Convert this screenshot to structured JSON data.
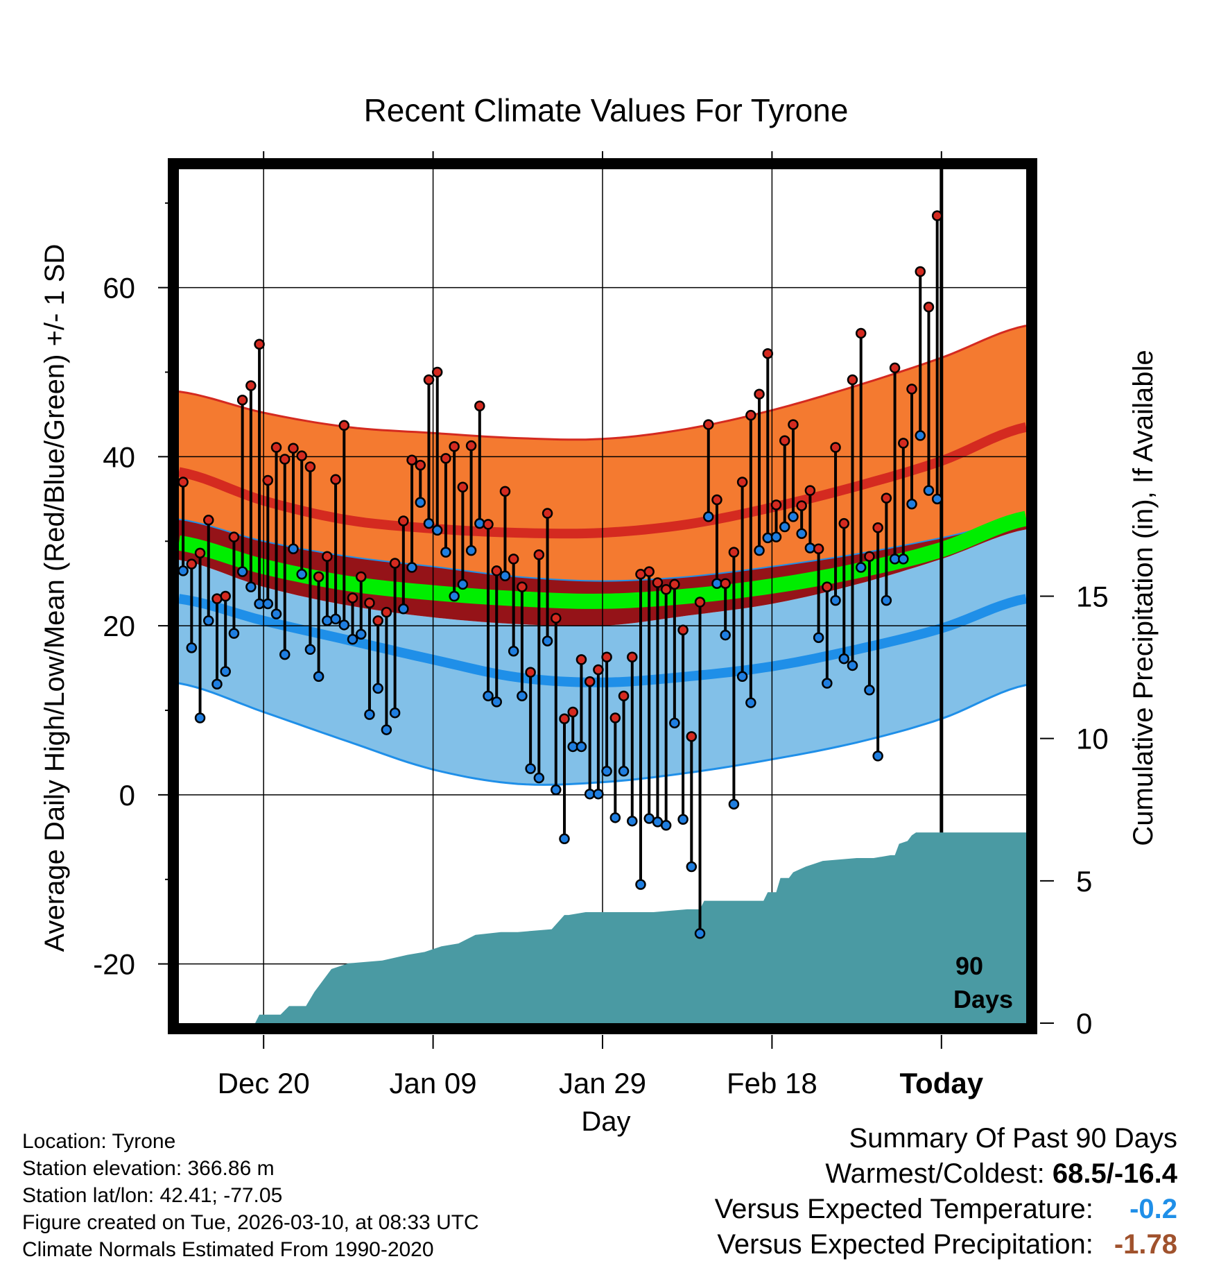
{
  "chart_data": {
    "type": "line",
    "title": "Recent Climate Values For Tyrone",
    "xlabel": "Day",
    "ylabel": "Average Daily High/Low/Mean (Red/Blue/Green) +/- 1 SD",
    "y2label": "Cumulative Precipitation (in), If Available",
    "days": 100,
    "today_index": 90,
    "ylim": [
      -27,
      74
    ],
    "y_ticks": [
      -20,
      0,
      20,
      40,
      60
    ],
    "y2lim": [
      0,
      30
    ],
    "y2_ticks": [
      0,
      5,
      10,
      15
    ],
    "x_ticks": [
      {
        "index": 10,
        "label": "Dec 20"
      },
      {
        "index": 30,
        "label": "Jan 09"
      },
      {
        "index": 50,
        "label": "Jan 29"
      },
      {
        "index": 70,
        "label": "Feb 18"
      },
      {
        "index": 90,
        "label": "Today"
      }
    ],
    "today_label_line1": "90",
    "today_label_line2": "Days",
    "normals": {
      "day_index": [
        0,
        10,
        20,
        30,
        40,
        50,
        60,
        70,
        80,
        90,
        100
      ],
      "high_plus_sd": [
        47.7,
        45.2,
        43.5,
        42.8,
        42.2,
        42.1,
        43.3,
        45.5,
        48.4,
        51.7,
        55.5
      ],
      "high_mean": [
        38.2,
        34.8,
        32.5,
        31.5,
        31.0,
        31.0,
        32.0,
        34.0,
        36.5,
        39.5,
        43.5
      ],
      "high_minus_sd": [
        32.6,
        30.0,
        28.2,
        27.0,
        25.8,
        25.3,
        25.8,
        27.0,
        28.5,
        30.4,
        32.6
      ],
      "mean_mean": [
        29.8,
        27.0,
        25.0,
        23.9,
        23.2,
        22.9,
        23.5,
        24.7,
        26.5,
        29.0,
        32.7
      ],
      "low_plus_sd": [
        27.8,
        24.6,
        22.4,
        21.0,
        20.2,
        20.0,
        21.2,
        22.6,
        24.9,
        27.9,
        31.4
      ],
      "low_mean": [
        23.2,
        20.6,
        18.3,
        16.0,
        13.9,
        13.3,
        14.0,
        15.2,
        17.2,
        19.7,
        23.2
      ],
      "low_minus_sd": [
        13.2,
        9.8,
        6.3,
        3.0,
        1.3,
        1.5,
        2.6,
        4.2,
        6.2,
        9.0,
        13.0
      ]
    },
    "series": [
      {
        "name": "Daily High",
        "color": "#d42a20",
        "values": [
          37.0,
          27.3,
          28.6,
          32.5,
          23.2,
          23.5,
          30.5,
          46.7,
          48.4,
          53.3,
          37.2,
          41.1,
          39.7,
          41.0,
          40.1,
          38.8,
          25.8,
          28.2,
          37.3,
          43.7,
          23.3,
          25.8,
          22.7,
          20.6,
          21.6,
          27.4,
          32.4,
          39.6,
          39.0,
          49.1,
          50.0,
          39.8,
          41.2,
          36.4,
          41.3,
          46.0,
          32.0,
          26.5,
          35.9,
          27.9,
          24.6,
          14.5,
          28.4,
          33.3,
          20.9,
          9.0,
          9.8,
          16.0,
          13.4,
          14.8,
          16.3,
          9.1,
          11.7,
          16.3,
          26.1,
          26.4,
          25.1,
          24.3,
          24.9,
          19.5,
          6.9,
          22.8,
          43.8,
          34.9,
          25.0,
          28.7,
          37.0,
          44.9,
          47.4,
          52.2,
          34.3,
          41.9,
          43.8,
          34.2,
          36.0,
          29.1,
          24.6,
          41.1,
          32.1,
          49.1,
          54.6,
          28.2,
          31.6,
          35.1,
          50.5,
          41.6,
          48.0,
          61.9,
          57.7,
          68.5
        ]
      },
      {
        "name": "Daily Low",
        "color": "#1f7ee0",
        "values": [
          26.5,
          17.4,
          9.1,
          20.6,
          13.1,
          14.6,
          19.1,
          26.4,
          24.6,
          22.6,
          22.6,
          21.4,
          16.6,
          29.1,
          26.1,
          17.2,
          14.0,
          20.6,
          20.8,
          20.1,
          18.4,
          19.0,
          9.5,
          12.6,
          7.7,
          9.7,
          22.0,
          26.9,
          34.6,
          32.1,
          31.3,
          28.7,
          23.5,
          24.9,
          28.9,
          32.1,
          11.7,
          11.0,
          25.9,
          17.0,
          11.7,
          3.1,
          2.0,
          18.2,
          0.6,
          -5.2,
          5.7,
          5.7,
          0.1,
          0.1,
          2.8,
          -2.7,
          2.8,
          -3.1,
          -10.6,
          -2.8,
          -3.2,
          -3.6,
          8.5,
          -2.9,
          -8.5,
          -16.4,
          32.9,
          25.0,
          18.9,
          -1.1,
          14.0,
          10.9,
          28.9,
          30.4,
          30.5,
          31.7,
          32.9,
          30.9,
          29.2,
          18.6,
          13.2,
          23.0,
          16.1,
          15.3,
          26.9,
          12.4,
          4.6,
          23.0,
          27.9,
          27.9,
          34.4,
          42.5,
          36.0,
          35.0
        ]
      }
    ],
    "precip": {
      "day_index": [
        0,
        9,
        9.5,
        12,
        13,
        15,
        16,
        18,
        20,
        24,
        27,
        29,
        31,
        33,
        35,
        38,
        40,
        44,
        45.5,
        46,
        48,
        52,
        56,
        60,
        61.5,
        62,
        65,
        67,
        69,
        69.5,
        70.5,
        71,
        72,
        72.5,
        74,
        75,
        76,
        80,
        82,
        84,
        84.5,
        85,
        86,
        86.5,
        87,
        88,
        90,
        100
      ],
      "values": [
        0.0,
        0.0,
        0.3,
        0.3,
        0.6,
        0.6,
        1.1,
        1.9,
        2.1,
        2.2,
        2.4,
        2.5,
        2.7,
        2.8,
        3.1,
        3.2,
        3.2,
        3.3,
        3.8,
        3.8,
        3.9,
        3.9,
        3.9,
        4.0,
        4.0,
        4.3,
        4.3,
        4.3,
        4.3,
        4.6,
        4.6,
        5.1,
        5.1,
        5.3,
        5.5,
        5.6,
        5.7,
        5.8,
        5.8,
        5.9,
        5.9,
        6.3,
        6.4,
        6.6,
        6.7,
        6.7,
        6.7,
        6.7
      ]
    }
  },
  "info": {
    "location": "Location: Tyrone",
    "elevation": "Station elevation: 366.86 m",
    "latlon": "Station lat/lon: 42.41; -77.05",
    "created": "Figure created on Tue, 2026-03-10, at 08:33 UTC",
    "normals_period": "Climate Normals Estimated From 1990-2020"
  },
  "summary": {
    "heading": "Summary Of Past 90 Days",
    "warmest_coldest_label": "Warmest/Coldest:",
    "warmest_coldest_value": "68.5/-16.4",
    "temp_label": "Versus Expected Temperature:",
    "temp_value": "-0.2",
    "temp_color": "#1f8fe8",
    "precip_label": "Versus Expected Precipitation:",
    "precip_value": "-1.78",
    "precip_color": "#a0522d"
  }
}
